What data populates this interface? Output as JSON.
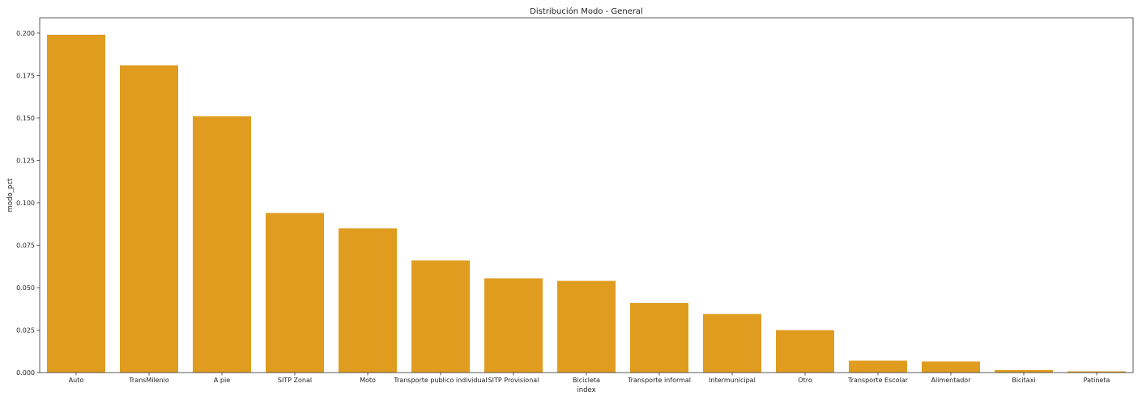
{
  "chart_data": {
    "type": "bar",
    "title": "Distribución Modo - General",
    "xlabel": "index",
    "ylabel": "modo_pct",
    "ylim": [
      0,
      0.209
    ],
    "yticks": [
      "0.000",
      "0.025",
      "0.050",
      "0.075",
      "0.100",
      "0.125",
      "0.150",
      "0.175",
      "0.200"
    ],
    "grid": false,
    "bar_color": "#e09c1f",
    "categories": [
      "Auto",
      "TransMilenio",
      "A pie",
      "SITP Zonal",
      "Moto",
      "Transporte publico individual",
      "SITP Provisional",
      "Bicicleta",
      "Transporte informal",
      "Intermunicipal",
      "Otro",
      "Transporte Escolar",
      "Alimentador",
      "Bicitaxi",
      "Patineta"
    ],
    "values": [
      0.199,
      0.181,
      0.151,
      0.094,
      0.085,
      0.066,
      0.0555,
      0.054,
      0.041,
      0.0345,
      0.025,
      0.007,
      0.0065,
      0.0015,
      0.0007
    ]
  }
}
